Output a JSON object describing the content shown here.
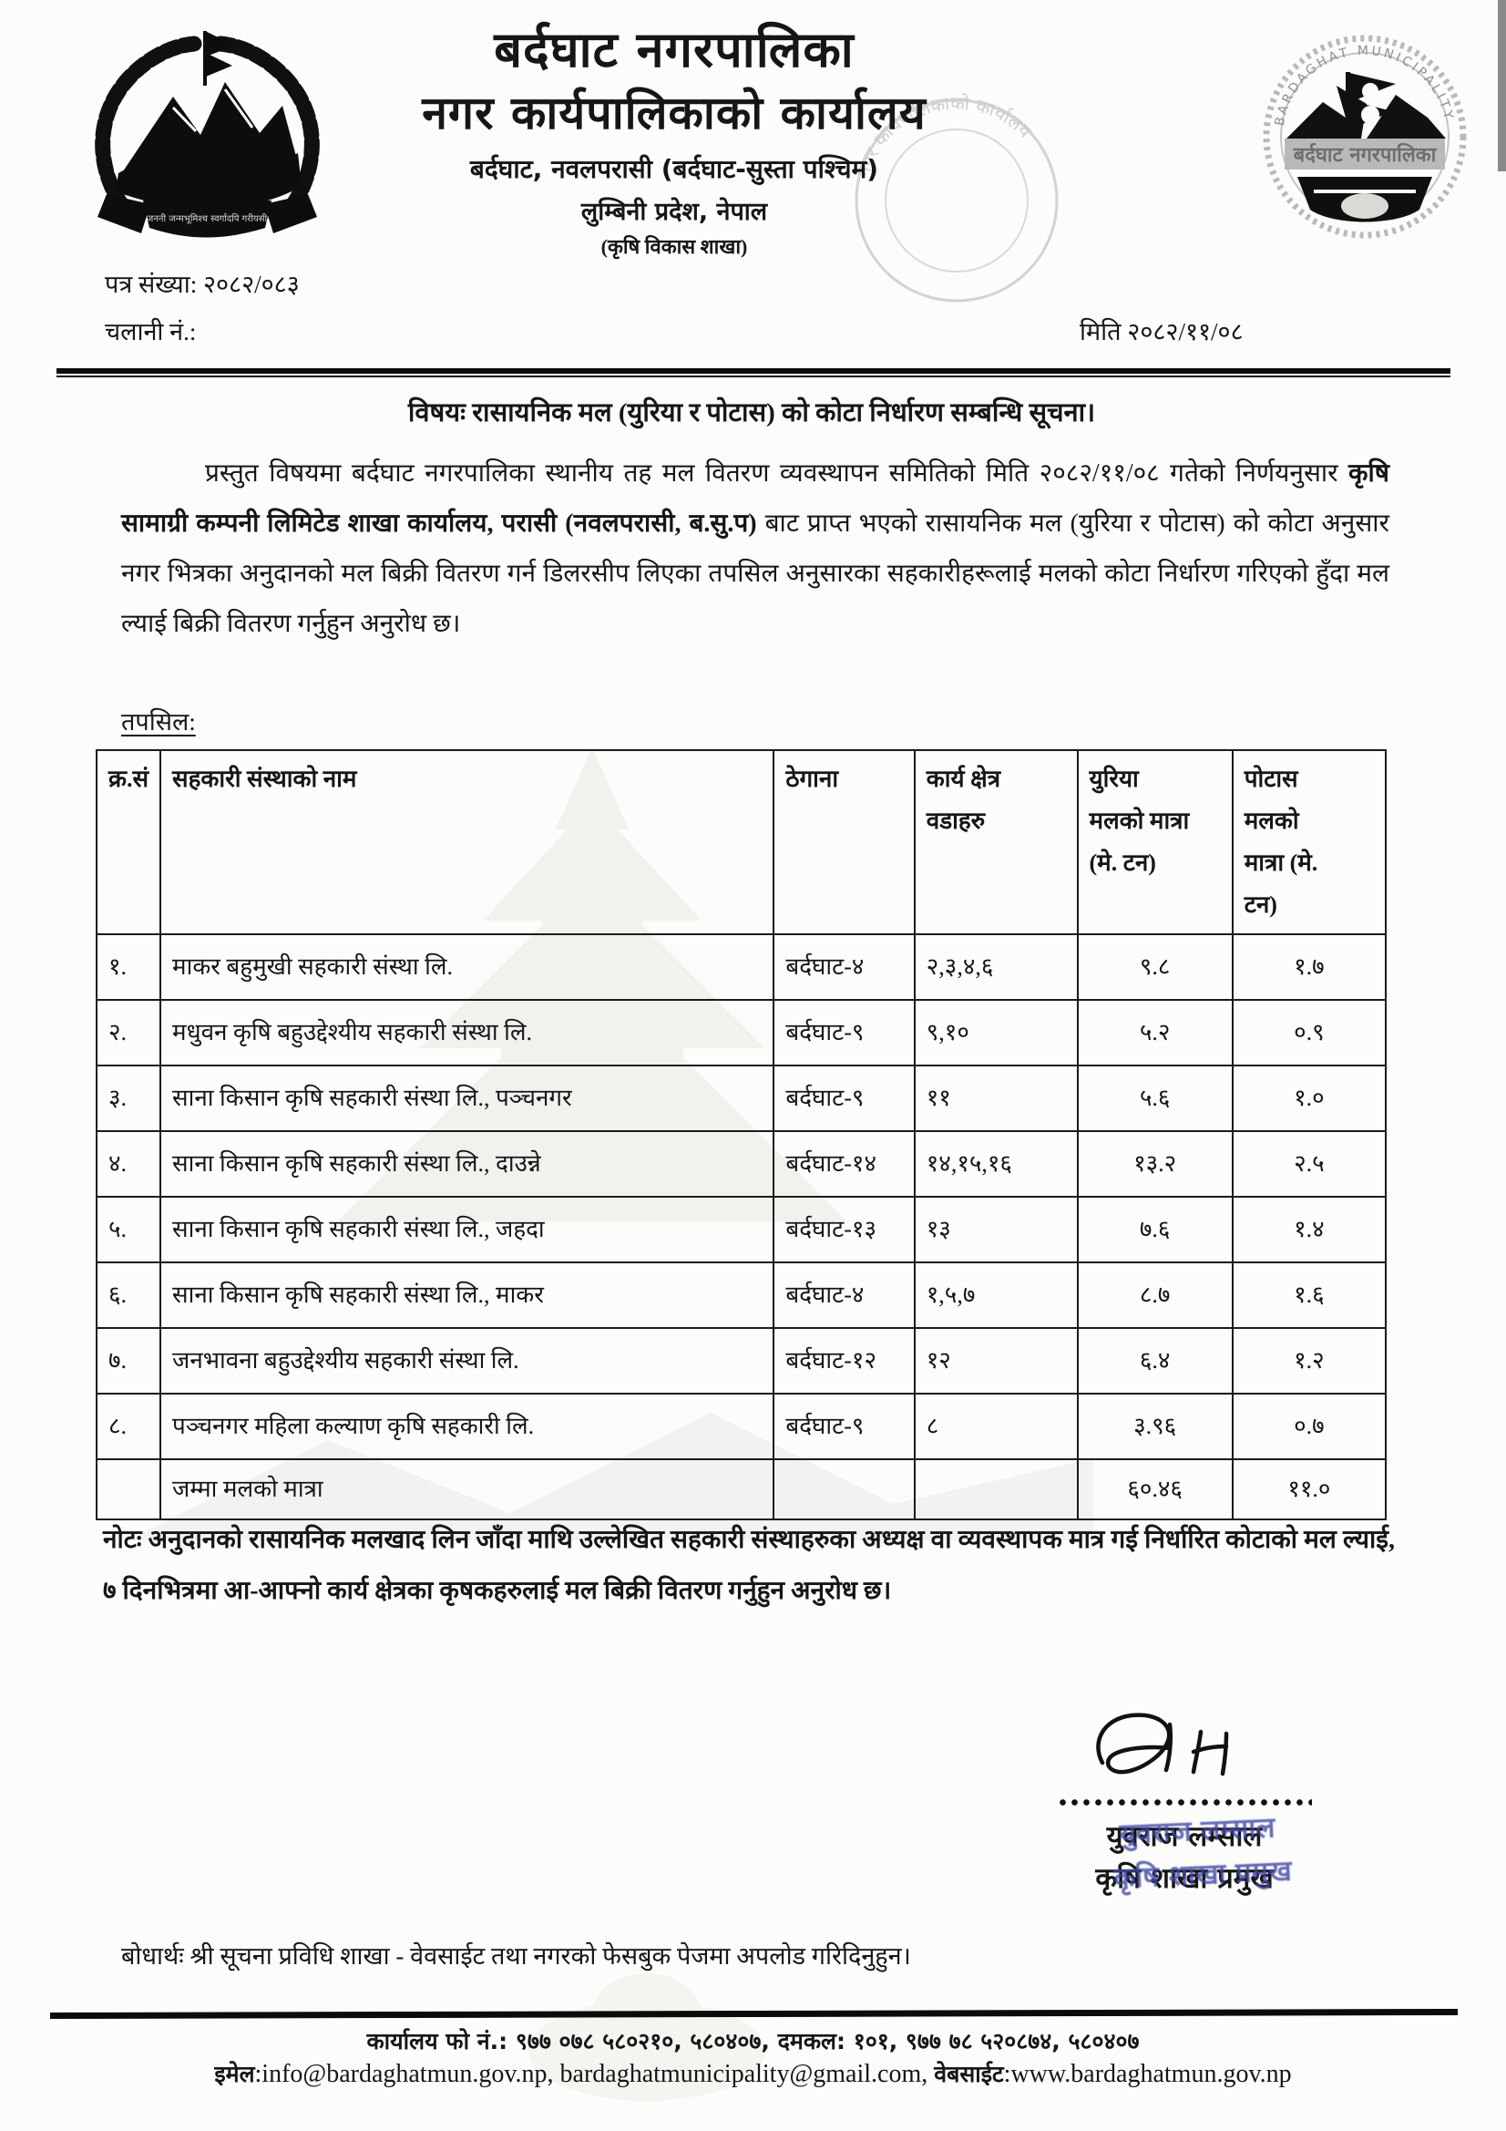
{
  "page": {
    "letterhead": {
      "title1": "बर्दघाट नगरपालिका",
      "title2": "नगर कार्यपालिकाको कार्यालय",
      "address_line": "बर्दघाट, नवलपरासी (बर्दघाट-सुस्ता पश्चिम)",
      "province_line": "लुम्बिनी प्रदेश, नेपाल",
      "department_line": "(कृषि विकास शाखा)",
      "emblem_motto": "जननी जन्मभूमिश्च स्वर्गादपि गरीयसी",
      "seal_top_text": "BARDAGHAT MUNICIPALITY",
      "seal_center_text": "बर्दघाट नगरपालिका"
    },
    "ref": {
      "letter_no_label": "पत्र संख्या:",
      "letter_no_value": "२०८२/०८३",
      "dispatch_label": "चलानी नं.:",
      "date_label": "मिति",
      "date_value": "२०८२/११/०८"
    },
    "subject": "विषयः रासायनिक मल (युरिया र पोटास) को कोटा निर्धारण सम्बन्धि सूचना।",
    "body": {
      "para_start": "प्रस्तुत विषयमा बर्दघाट नगरपालिका स्थानीय तह मल वितरण व्यवस्थापन समितिको मिति २०८२/११/०८ गतेको निर्णयनुसार ",
      "para_bold": "कृषि सामाग्री कम्पनी लिमिटेड शाखा कार्यालय, परासी (नवलपरासी, ब.सु.प)",
      "para_end": " बाट प्राप्त भएको रासायनिक मल (युरिया र पोटास) को कोटा अनुसार नगर भित्रका अनुदानको मल बिक्री वितरण गर्न डिलरसीप लिएका तपसिल अनुसारका सहकारीहरूलाई मलको कोटा निर्धारण गरिएको हुँदा मल ल्याई बिक्री वितरण गर्नुहुन अनुरोध छ।",
      "details_label": "तपसिल:"
    },
    "table": {
      "headers": [
        "क्र.सं",
        "सहकारी संस्थाको नाम",
        "ठेगाना",
        "कार्य क्षेत्र\nवडाहरु",
        "युरिया\nमलको मात्रा\n(मे. टन)",
        "पोटास\nमलको\nमात्रा (मे.\nटन)"
      ],
      "rows": [
        [
          "१.",
          "माकर बहुमुखी सहकारी संस्था लि.",
          "बर्दघाट-४",
          "२,३,४,६",
          "९.८",
          "१.७"
        ],
        [
          "२.",
          "मधुवन कृषि बहुउद्देश्यीय सहकारी संस्था लि.",
          "बर्दघाट-९",
          "९,१०",
          "५.२",
          "०.९"
        ],
        [
          "३.",
          "साना किसान कृषि सहकारी संस्था लि., पञ्चनगर",
          "बर्दघाट-९",
          "११",
          "५.६",
          "१.०"
        ],
        [
          "४.",
          "साना किसान कृषि सहकारी संस्था लि., दाउन्ने",
          "बर्दघाट-१४",
          "१४,१५,१६",
          "१३.२",
          "२.५"
        ],
        [
          "५.",
          "साना किसान कृषि सहकारी संस्था लि., जहदा",
          "बर्दघाट-१३",
          "१३",
          "७.६",
          "१.४"
        ],
        [
          "६.",
          "साना किसान कृषि सहकारी संस्था लि., माकर",
          "बर्दघाट-४",
          "१,५,७",
          "८.७",
          "१.६"
        ],
        [
          "७.",
          "जनभावना बहुउद्देश्यीय सहकारी संस्था लि.",
          "बर्दघाट-१२",
          "१२",
          "६.४",
          "१.२"
        ],
        [
          "८.",
          "पञ्चनगर महिला कल्याण कृषि सहकारी लि.",
          "बर्दघाट-९",
          "८",
          "३.९६",
          "०.७"
        ]
      ],
      "total_row": [
        "",
        "जम्मा मलको मात्रा",
        "",
        "",
        "६०.४६",
        "११.०"
      ]
    },
    "note": "नोटः अनुदानको रासायनिक मलखाद लिन जाँदा माथि उल्लेखित सहकारी संस्थाहरुका अध्यक्ष वा व्यवस्थापक मात्र गई निर्धारित कोटाको मल ल्याई, ७ दिनभित्रमा आ-आफ्नो कार्य क्षेत्रका कृषकहरुलाई मल बिक्री वितरण गर्नुहुन अनुरोध छ।",
    "signature": {
      "name": "युवराज लम्साल",
      "title": "कृषि शाखा प्रमुख"
    },
    "cc_line": "बोधार्थः श्री सूचना प्रविधि शाखा - वेवसाईट तथा नगरको फेसबुक पेजमा अपलोड गरिदिनुहुन।",
    "footer": {
      "line1": "कार्यालय फो नं.: ९७७ ०७८ ५८०२१०, ५८०४०७, दमकल: १०१, ९७७ ७८ ५२०८७४, ५८०४०७",
      "email_label": "इमेल",
      "emails": ":info@bardaghatmun.gov.np, bardaghatmunicipality@gmail.com, ",
      "web_label": "वेबसाईट",
      "website": ":www.bardaghatmun.gov.np"
    },
    "colors": {
      "stamp_blue": "#3f46a5",
      "ink": "#161616"
    }
  }
}
